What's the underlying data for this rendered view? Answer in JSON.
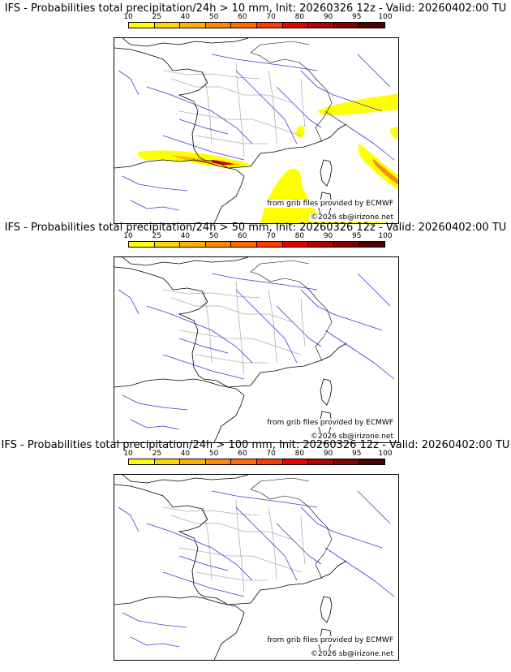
{
  "colorbar": {
    "ticks": [
      "10",
      "25",
      "40",
      "50",
      "60",
      "70",
      "80",
      "90",
      "95",
      "100"
    ],
    "colors": [
      "#ffff00",
      "#ffd700",
      "#ffb000",
      "#ff8c00",
      "#ff6a00",
      "#ff3c00",
      "#e60000",
      "#b40000",
      "#820000",
      "#500000"
    ]
  },
  "panels": [
    {
      "title": "IFS - Probabilities total precipitation/24h > 10 mm, Init: 20260326 12z - Valid: 20260402:00 TU",
      "credit_source": "from grib files provided by ECMWF",
      "credit_copyright": "©2026 sb@irizone.net"
    },
    {
      "title": "IFS - Probabilities total precipitation/24h > 50 mm, Init: 20260326 12z - Valid: 20260402:00 TU",
      "credit_source": "from grib files provided by ECMWF",
      "credit_copyright": "©2026 sb@irizone.net"
    },
    {
      "title": "IFS - Probabilities total precipitation/24h > 100 mm, Init: 20260326 12z - Valid: 20260402:00 TU",
      "credit_source": "from grib files provided by ECMWF",
      "credit_copyright": "©2026 sb@irizone.net"
    }
  ]
}
